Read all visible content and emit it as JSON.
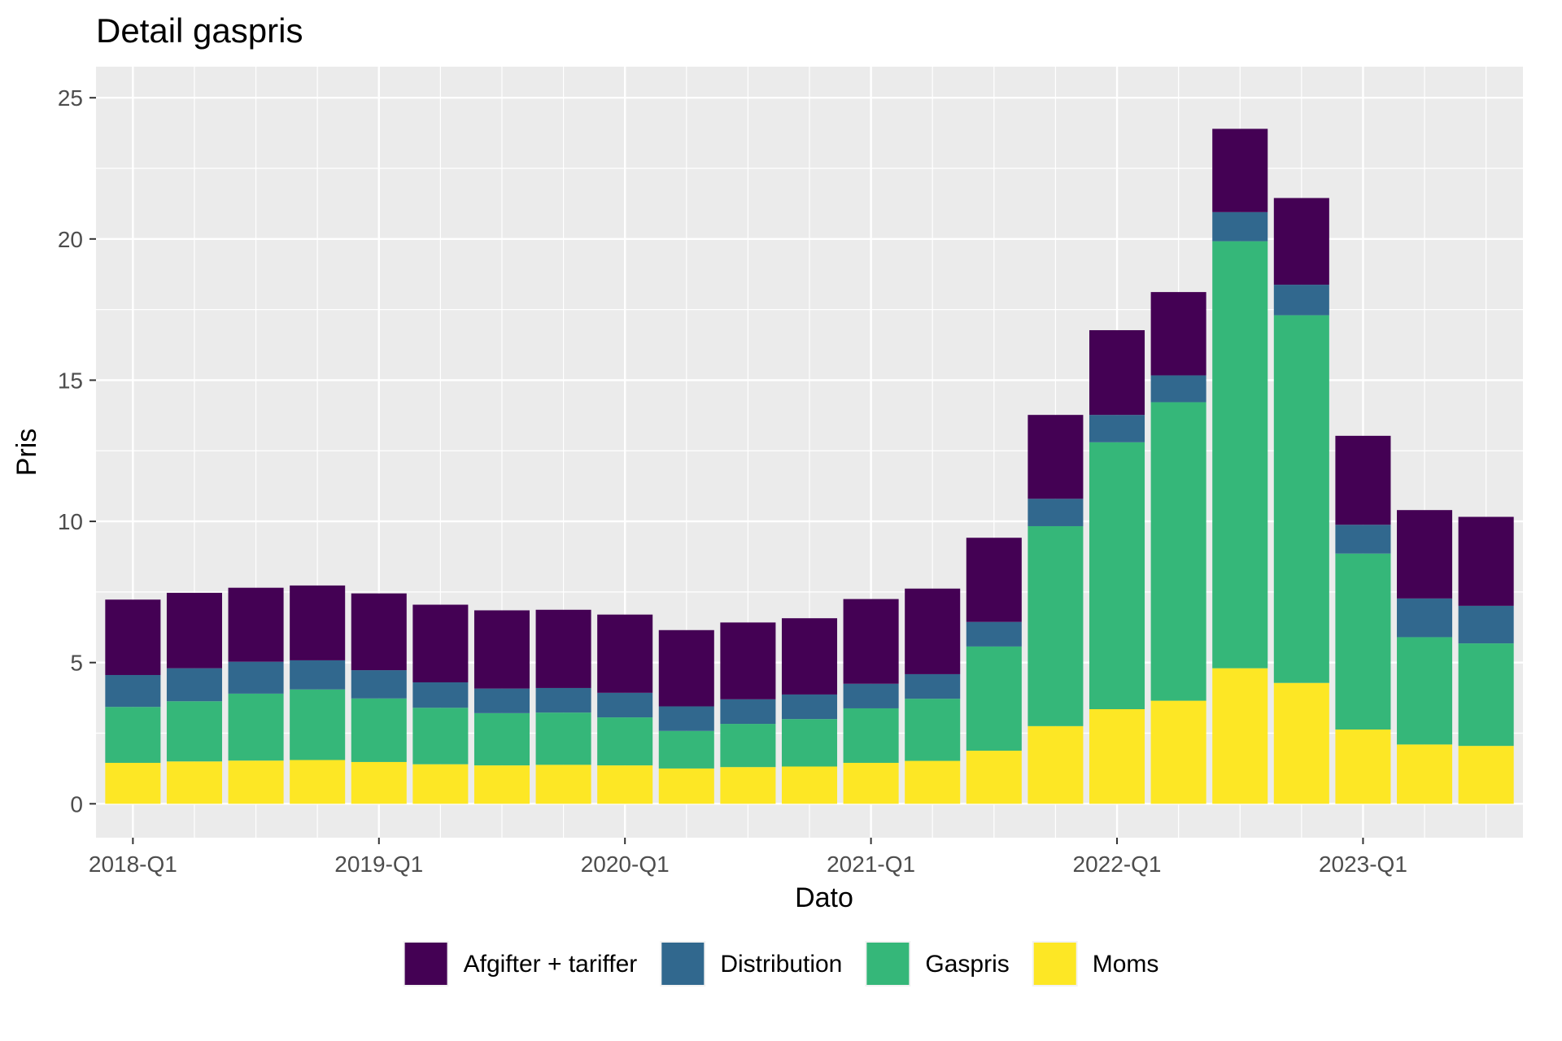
{
  "chart_data": {
    "type": "bar",
    "stacked": true,
    "title": "Detail gaspris",
    "xlabel": "Dato",
    "ylabel": "Pris",
    "ylim": [
      -1.2,
      26.1
    ],
    "yticks": [
      0,
      5,
      10,
      15,
      20,
      25
    ],
    "xtick_labels": [
      "2018-Q1",
      "2019-Q1",
      "2020-Q1",
      "2021-Q1",
      "2022-Q1",
      "2023-Q1"
    ],
    "xtick_positions": [
      0,
      4,
      8,
      12,
      16,
      20
    ],
    "categories": [
      "2018-Q1",
      "2018-Q2",
      "2018-Q3",
      "2018-Q4",
      "2019-Q1",
      "2019-Q2",
      "2019-Q3",
      "2019-Q4",
      "2020-Q1",
      "2020-Q2",
      "2020-Q3",
      "2020-Q4",
      "2021-Q1",
      "2021-Q2",
      "2021-Q3",
      "2021-Q4",
      "2022-Q1",
      "2022-Q2",
      "2022-Q3",
      "2022-Q4",
      "2023-Q1",
      "2023-Q2",
      "2023-Q3"
    ],
    "series": [
      {
        "name": "Moms",
        "color": "#FDE725",
        "values": [
          1.45,
          1.5,
          1.53,
          1.55,
          1.48,
          1.4,
          1.36,
          1.38,
          1.36,
          1.25,
          1.3,
          1.32,
          1.45,
          1.52,
          1.88,
          2.75,
          3.35,
          3.65,
          4.8,
          4.28,
          2.63,
          2.1,
          2.05
        ]
      },
      {
        "name": "Gaspris",
        "color": "#35B779",
        "values": [
          1.98,
          2.13,
          2.37,
          2.5,
          2.25,
          2.0,
          1.85,
          1.85,
          1.7,
          1.33,
          1.53,
          1.68,
          1.93,
          2.2,
          3.69,
          7.08,
          9.45,
          10.57,
          15.12,
          13.02,
          6.23,
          3.8,
          3.63
        ]
      },
      {
        "name": "Distribution",
        "color": "#31688E",
        "values": [
          1.13,
          1.17,
          1.13,
          1.03,
          1.0,
          0.9,
          0.87,
          0.87,
          0.87,
          0.87,
          0.87,
          0.87,
          0.87,
          0.87,
          0.87,
          0.97,
          0.97,
          0.95,
          1.03,
          1.08,
          1.02,
          1.37,
          1.33
        ]
      },
      {
        "name": "Afgifter + tariffer",
        "color": "#440154",
        "values": [
          2.67,
          2.67,
          2.62,
          2.65,
          2.72,
          2.75,
          2.77,
          2.77,
          2.77,
          2.7,
          2.72,
          2.7,
          3.0,
          3.03,
          2.98,
          2.97,
          3.0,
          2.95,
          2.95,
          3.07,
          3.15,
          3.13,
          3.15
        ]
      }
    ],
    "legend": {
      "position": "bottom",
      "order": [
        "Afgifter + tariffer",
        "Distribution",
        "Gaspris",
        "Moms"
      ]
    },
    "grid": true,
    "panel_background": "#EBEBEB",
    "grid_color": "#FFFFFF"
  }
}
